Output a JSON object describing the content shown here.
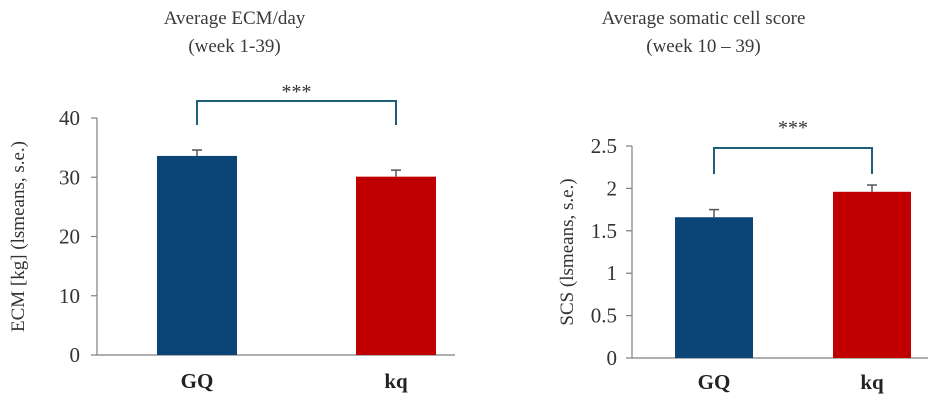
{
  "chart_data": [
    {
      "type": "bar",
      "title": "Average ECM/day",
      "subtitle": "(week 1-39)",
      "categories": [
        "GQ",
        "kq"
      ],
      "values": [
        33.6,
        30.1
      ],
      "errors": [
        1.0,
        1.1
      ],
      "ylabel": "ECM [kg] (lsmeans, s.e.)",
      "ylim": [
        0,
        40
      ],
      "yticks": [
        "0",
        "10",
        "20",
        "30",
        "40"
      ],
      "significance": "***",
      "colors": [
        "#0B4477",
        "#C00000"
      ],
      "grid": false,
      "legend": "none"
    },
    {
      "type": "bar",
      "title": "Average somatic cell score",
      "subtitle": "(week 10 – 39)",
      "categories": [
        "GQ",
        "kq"
      ],
      "values": [
        1.66,
        1.96
      ],
      "errors": [
        0.09,
        0.08
      ],
      "ylabel": "SCS (lsmeans, s.e.)",
      "ylim": [
        0,
        2.5
      ],
      "yticks": [
        "0",
        "0.5",
        "1",
        "1.5",
        "2",
        "2.5"
      ],
      "significance": "***",
      "colors": [
        "#0B4477",
        "#C00000"
      ],
      "grid": false,
      "legend": "none"
    }
  ]
}
